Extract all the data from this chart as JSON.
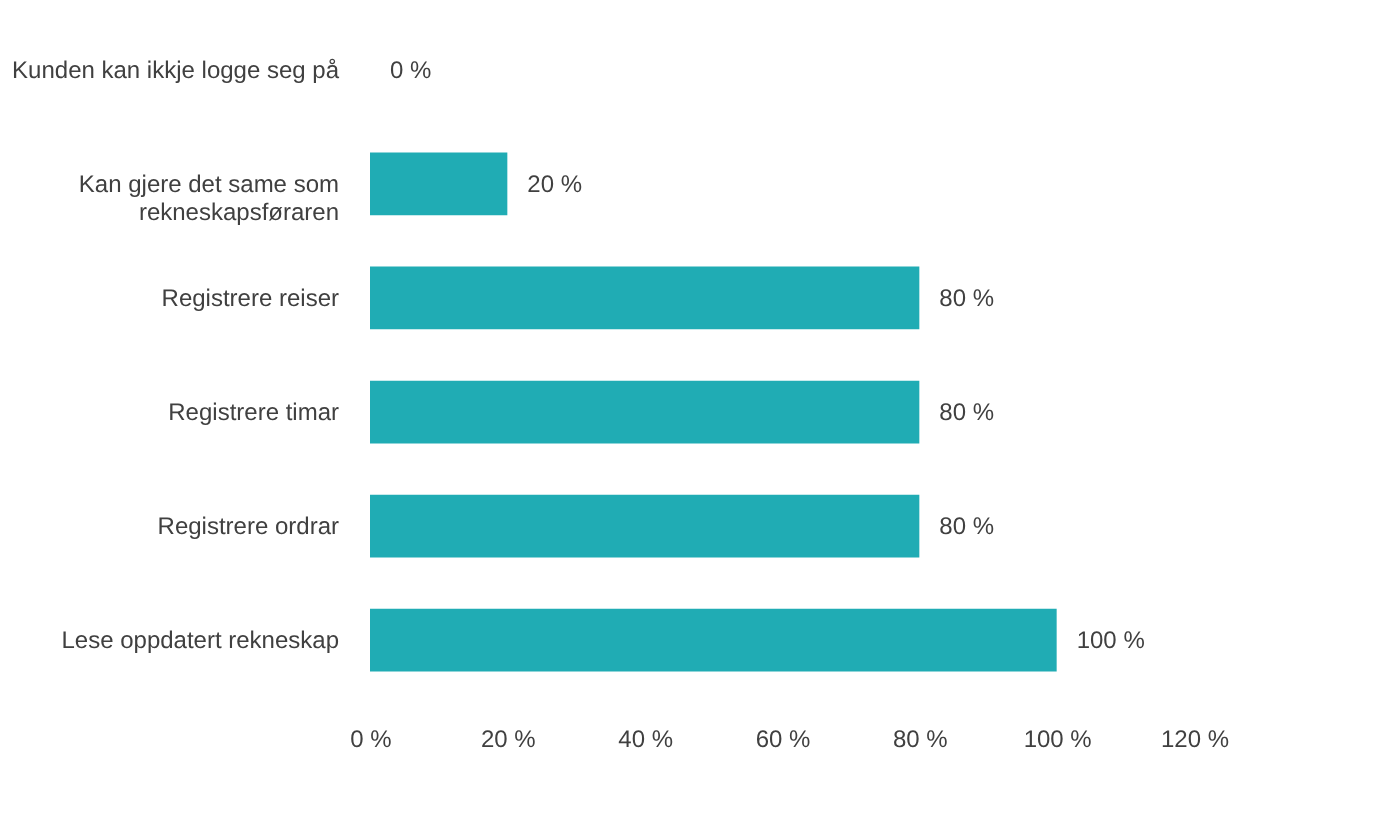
{
  "chart_data": {
    "type": "bar",
    "orientation": "horizontal",
    "categories": [
      "Kunden kan ikkje logge seg på",
      "Kan gjere det same som\nrekneskapsføraren",
      "Registrere reiser",
      "Registrere timar",
      "Registrere ordrar",
      "Lese oppdatert rekneskap"
    ],
    "values": [
      0,
      20,
      80,
      80,
      80,
      100
    ],
    "value_labels": [
      "0 %",
      "20 %",
      "80 %",
      "80 %",
      "80 %",
      "100 %"
    ],
    "color": "#20acb4",
    "xlim": [
      0,
      120
    ],
    "xticks": [
      {
        "value": 0,
        "label": "0 %"
      },
      {
        "value": 20,
        "label": "20 %"
      },
      {
        "value": 40,
        "label": "40 %"
      },
      {
        "value": 60,
        "label": "60 %"
      },
      {
        "value": 80,
        "label": "80 %"
      },
      {
        "value": 100,
        "label": "100 %"
      },
      {
        "value": 120,
        "label": "120 %"
      }
    ],
    "grid": false
  }
}
